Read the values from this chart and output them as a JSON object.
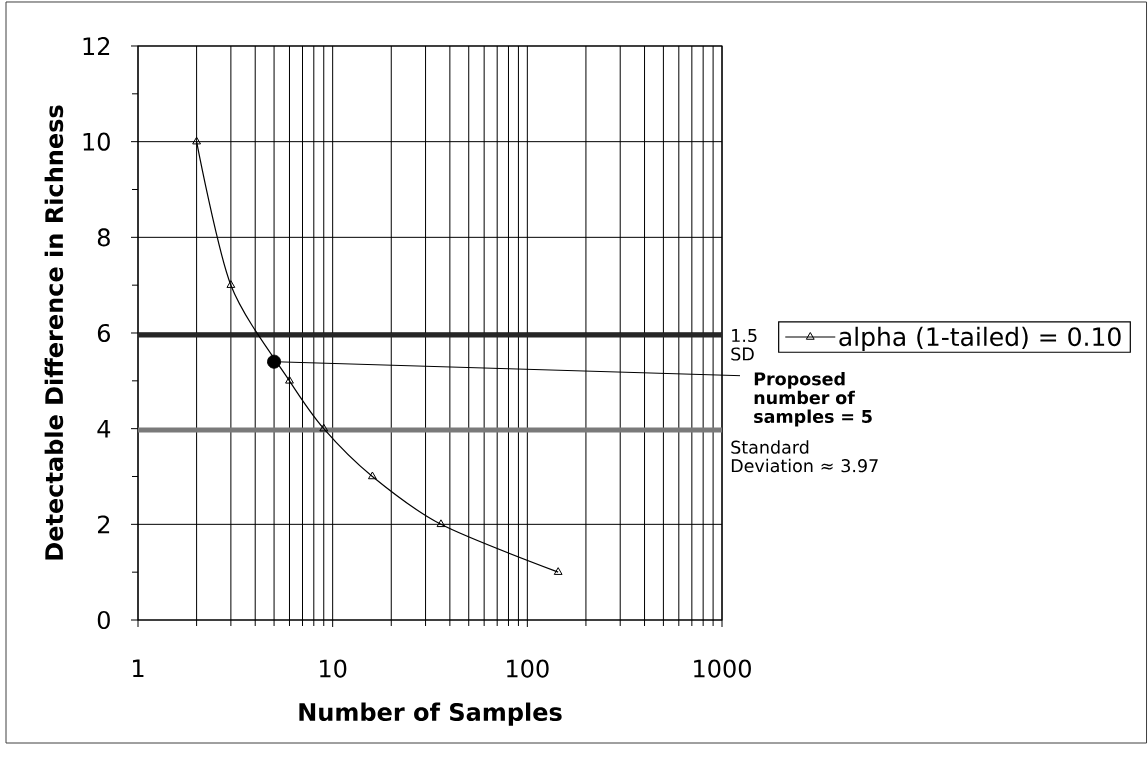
{
  "chart_data": {
    "type": "line",
    "xlabel": "Number of Samples",
    "ylabel": "Detectable Difference in Richness",
    "x": [
      2,
      3,
      6,
      9,
      16,
      36,
      144
    ],
    "series": [
      {
        "name": "alpha (1-tailed) = 0.10",
        "color": "#000000",
        "values": [
          10,
          7,
          5,
          4,
          3,
          2,
          1
        ]
      },
      {
        "type": "scatter",
        "x": [
          5
        ],
        "values": [
          5.4
        ],
        "color": "#000000",
        "marker": "circle"
      }
    ],
    "annotations": [
      {
        "text": "Proposed number of samples = 5",
        "x": 5,
        "y": 5.4
      }
    ],
    "ref_lines": [
      {
        "axis": "y",
        "value": 5.96,
        "label": "1.5 SD",
        "color": "#262626"
      },
      {
        "axis": "y",
        "value": 3.97,
        "label": "Standard Deviation ≈ 3.97",
        "color": "#7a7a7a"
      }
    ],
    "log": "x",
    "xlim": [
      1,
      1000
    ],
    "xticks": [
      1,
      10,
      100,
      1000
    ],
    "ylim": [
      0,
      12
    ],
    "yticks": [
      0,
      2,
      4,
      6,
      8,
      10,
      12
    ],
    "grid": true,
    "legend": "right",
    "marker": "triangle",
    "line_style": "solid"
  }
}
